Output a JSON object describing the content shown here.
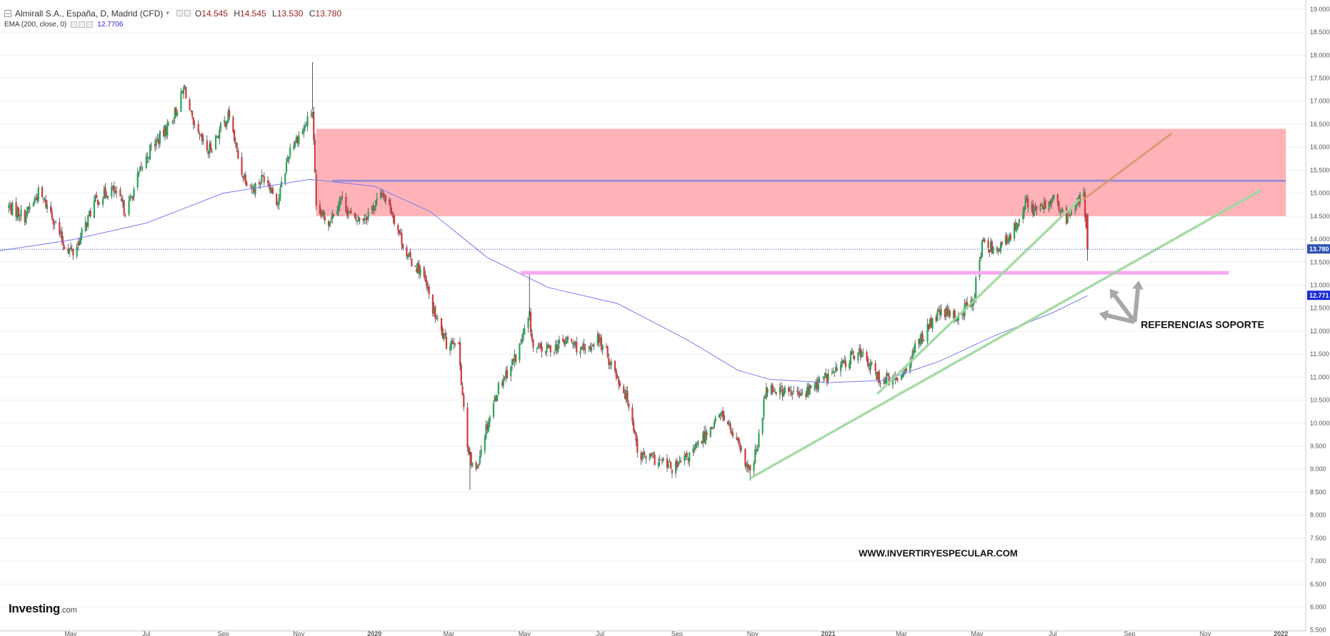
{
  "legend": {
    "symbol": "Almirall S.A., España, D, Madrid (CFD)",
    "open_label": "O",
    "open": "14.545",
    "high_label": "H",
    "high": "14.545",
    "low_label": "L",
    "low": "13.530",
    "close_label": "C",
    "close": "13.780",
    "ema_label": "EMA (200, close, 0)",
    "ema_value": "12.7706"
  },
  "brand": {
    "name": "Investing",
    "suffix": ".com"
  },
  "annotations": {
    "support_label": "REFERENCIAS SOPORTE",
    "website": "WWW.INVERTIRYESPECULAR.COM"
  },
  "colors": {
    "up": "#26a65b",
    "down": "#d23a3a",
    "wick": "#444444",
    "resistance_zone": "#ffb3b8",
    "resistance_line": "#9c8bd6",
    "support_line": "#f7a8f0",
    "trendline": "#9ed89e",
    "projection": "#d49a6a",
    "ema": "#7a7af0",
    "price_tag": "#2b50b3",
    "ema_tag": "#1b2bd6",
    "arrow": "#a8a8a8"
  },
  "chart_data": {
    "type": "candlestick",
    "title": "Almirall S.A., España, D, Madrid (CFD)",
    "y_ticks": [
      "19.000",
      "18.500",
      "18.000",
      "17.500",
      "17.000",
      "16.500",
      "16.000",
      "15.500",
      "15.000",
      "14.500",
      "14.000",
      "13.500",
      "13.000",
      "12.500",
      "12.000",
      "11.500",
      "11.000",
      "10.500",
      "10.000",
      "9.500",
      "9.000",
      "8.500",
      "8.000",
      "7.500",
      "7.000",
      "6.500",
      "6.000",
      "5.500"
    ],
    "x_ticks": [
      {
        "date": "2019-05-01",
        "label": "May"
      },
      {
        "date": "2019-07-01",
        "label": "Jul"
      },
      {
        "date": "2019-09-01",
        "label": "Sep"
      },
      {
        "date": "2019-11-01",
        "label": "Nov"
      },
      {
        "date": "2020-01-01",
        "label": "2020"
      },
      {
        "date": "2020-03-01",
        "label": "Mar"
      },
      {
        "date": "2020-05-01",
        "label": "May"
      },
      {
        "date": "2020-07-01",
        "label": "Jul"
      },
      {
        "date": "2020-09-01",
        "label": "Sep"
      },
      {
        "date": "2020-11-01",
        "label": "Nov"
      },
      {
        "date": "2021-01-01",
        "label": "2021"
      },
      {
        "date": "2021-03-01",
        "label": "Mar"
      },
      {
        "date": "2021-05-01",
        "label": "May"
      },
      {
        "date": "2021-07-01",
        "label": "Jul"
      },
      {
        "date": "2021-09-01",
        "label": "Sep"
      },
      {
        "date": "2021-11-01",
        "label": "Nov"
      },
      {
        "date": "2022-01-01",
        "label": "2022"
      }
    ],
    "current_price": "13.780",
    "ema_last": "12.771",
    "price_path": [
      [
        "2019-03-12",
        14.7
      ],
      [
        "2019-03-25",
        14.5
      ],
      [
        "2019-04-05",
        15.0
      ],
      [
        "2019-04-15",
        14.6
      ],
      [
        "2019-04-25",
        13.9
      ],
      [
        "2019-05-03",
        13.7
      ],
      [
        "2019-05-10",
        14.1
      ],
      [
        "2019-05-20",
        14.8
      ],
      [
        "2019-06-03",
        15.1
      ],
      [
        "2019-06-15",
        14.6
      ],
      [
        "2019-06-25",
        15.4
      ],
      [
        "2019-07-05",
        16.0
      ],
      [
        "2019-07-15",
        16.3
      ],
      [
        "2019-07-25",
        16.8
      ],
      [
        "2019-08-01",
        17.3
      ],
      [
        "2019-08-08",
        16.4
      ],
      [
        "2019-08-20",
        15.9
      ],
      [
        "2019-09-01",
        16.5
      ],
      [
        "2019-09-06",
        16.7
      ],
      [
        "2019-09-15",
        15.5
      ],
      [
        "2019-09-25",
        15.1
      ],
      [
        "2019-10-05",
        15.4
      ],
      [
        "2019-10-15",
        14.8
      ],
      [
        "2019-10-25",
        16.0
      ],
      [
        "2019-11-05",
        16.4
      ],
      [
        "2019-11-12",
        16.8
      ],
      [
        "2019-11-15",
        14.6
      ],
      [
        "2019-11-25",
        14.4
      ],
      [
        "2019-12-05",
        14.9
      ],
      [
        "2019-12-15",
        14.4
      ],
      [
        "2019-12-25",
        14.5
      ],
      [
        "2020-01-08",
        15.0
      ],
      [
        "2020-01-15",
        14.6
      ],
      [
        "2020-01-28",
        13.6
      ],
      [
        "2020-02-08",
        13.3
      ],
      [
        "2020-02-18",
        12.4
      ],
      [
        "2020-02-28",
        11.7
      ],
      [
        "2020-03-08",
        11.9
      ],
      [
        "2020-03-16",
        9.4
      ],
      [
        "2020-03-22",
        8.9
      ],
      [
        "2020-03-30",
        9.8
      ],
      [
        "2020-04-10",
        10.8
      ],
      [
        "2020-04-25",
        11.5
      ],
      [
        "2020-05-05",
        12.3
      ],
      [
        "2020-05-08",
        11.6
      ],
      [
        "2020-05-20",
        11.6
      ],
      [
        "2020-06-05",
        11.8
      ],
      [
        "2020-06-20",
        11.5
      ],
      [
        "2020-06-28",
        11.9
      ],
      [
        "2020-07-10",
        11.3
      ],
      [
        "2020-07-25",
        10.4
      ],
      [
        "2020-08-01",
        9.3
      ],
      [
        "2020-08-15",
        9.2
      ],
      [
        "2020-08-30",
        9.0
      ],
      [
        "2020-09-15",
        9.4
      ],
      [
        "2020-09-30",
        10.0
      ],
      [
        "2020-10-08",
        10.2
      ],
      [
        "2020-10-20",
        9.5
      ],
      [
        "2020-10-30",
        8.9
      ],
      [
        "2020-11-05",
        9.5
      ],
      [
        "2020-11-12",
        10.8
      ],
      [
        "2020-11-25",
        10.7
      ],
      [
        "2020-12-10",
        10.6
      ],
      [
        "2020-12-25",
        10.9
      ],
      [
        "2021-01-10",
        11.2
      ],
      [
        "2021-01-25",
        11.6
      ],
      [
        "2021-02-10",
        11.0
      ],
      [
        "2021-02-25",
        10.9
      ],
      [
        "2021-03-08",
        11.4
      ],
      [
        "2021-03-20",
        12.0
      ],
      [
        "2021-04-01",
        12.4
      ],
      [
        "2021-04-15",
        12.3
      ],
      [
        "2021-04-28",
        12.7
      ],
      [
        "2021-05-05",
        13.9
      ],
      [
        "2021-05-15",
        13.8
      ],
      [
        "2021-05-28",
        14.0
      ],
      [
        "2021-06-08",
        14.8
      ],
      [
        "2021-06-20",
        14.6
      ],
      [
        "2021-07-01",
        14.9
      ],
      [
        "2021-07-12",
        14.4
      ],
      [
        "2021-07-20",
        14.8
      ],
      [
        "2021-07-26",
        14.9
      ],
      [
        "2021-07-29",
        13.78
      ]
    ],
    "ema_path": [
      [
        "2019-03-05",
        13.75
      ],
      [
        "2019-05-01",
        13.98
      ],
      [
        "2019-07-01",
        14.35
      ],
      [
        "2019-09-01",
        15.0
      ],
      [
        "2019-11-10",
        15.3
      ],
      [
        "2020-01-01",
        15.15
      ],
      [
        "2020-02-15",
        14.6
      ],
      [
        "2020-04-01",
        13.6
      ],
      [
        "2020-05-20",
        12.95
      ],
      [
        "2020-07-15",
        12.6
      ],
      [
        "2020-09-10",
        11.8
      ],
      [
        "2020-10-20",
        11.15
      ],
      [
        "2020-11-15",
        10.95
      ],
      [
        "2021-01-01",
        10.88
      ],
      [
        "2021-02-15",
        10.93
      ],
      [
        "2021-04-01",
        11.35
      ],
      [
        "2021-05-15",
        11.9
      ],
      [
        "2021-07-01",
        12.4
      ],
      [
        "2021-07-29",
        12.771
      ]
    ],
    "extremes": [
      {
        "date": "2019-11-12",
        "high": 17.85
      },
      {
        "date": "2020-05-05",
        "high": 13.25
      },
      {
        "date": "2020-03-18",
        "low": 8.55
      },
      {
        "date": "2020-10-30",
        "low": 8.75
      }
    ],
    "drawings": {
      "resistance_zone": {
        "from": "2019-11-15",
        "to": "2022-01-05",
        "low": 14.5,
        "high": 16.4
      },
      "resistance_line": {
        "from": "2019-11-28",
        "to": "2022-01-05",
        "y": 15.27
      },
      "support_line": {
        "from": "2020-04-28",
        "to": "2021-11-20",
        "y": 13.27
      },
      "trendline_steep": {
        "from": [
          "2021-02-10",
          10.65
        ],
        "to": [
          "2021-07-22",
          14.85
        ]
      },
      "trendline_long": {
        "from": [
          "2020-10-30",
          8.8
        ],
        "to": [
          "2021-12-15",
          15.05
        ]
      },
      "projection_line": {
        "from": [
          "2021-07-25",
          14.85
        ],
        "to": [
          "2021-10-05",
          16.3
        ]
      },
      "arrow_origin": [
        "2021-09-05",
        12.2
      ]
    }
  }
}
